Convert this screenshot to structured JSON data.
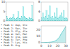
{
  "chart_data": [
    {
      "type": "bar",
      "categories": [
        null,
        null,
        null,
        null,
        null,
        null,
        null,
        null,
        null,
        null,
        null,
        null,
        null,
        null,
        null,
        null,
        null,
        null,
        null,
        null,
        null,
        null,
        null,
        null,
        null,
        null,
        null,
        null
      ],
      "values": [
        2.5,
        1.2,
        1.0,
        1.5,
        1.8,
        1.2,
        2.0,
        3.5,
        1.5,
        1.0,
        1.5,
        2.0,
        5.0,
        1.2,
        1.5,
        2.5,
        1.8,
        7.5,
        2.5,
        2.0,
        1.5,
        1.2,
        1.0,
        2.0,
        1.5,
        1.2,
        8.5,
        1.0
      ],
      "color": "#aaf0f0",
      "ylim": [
        0,
        10
      ],
      "yticks": [
        0,
        5,
        10
      ],
      "tick_labels": "y"
    },
    {
      "type": "bar",
      "categories": [
        null,
        null,
        null,
        null,
        null,
        null,
        null,
        null,
        null,
        null,
        null,
        null,
        null,
        null,
        null,
        null,
        null,
        null,
        null,
        null,
        null,
        null,
        null
      ],
      "values": [
        1.5,
        3.5,
        1.5,
        2.0,
        4.5,
        1.2,
        2.5,
        6.5,
        1.5,
        2.0,
        1.2,
        3.5,
        1.8,
        5.5,
        1.2,
        1.8,
        2.5,
        3.5,
        1.8,
        4.5,
        1.2,
        1.5,
        1.0
      ],
      "color": "#aaf0f0",
      "ylim": [
        0,
        8
      ],
      "yticks": [
        0,
        4,
        8
      ],
      "tick_labels": "y"
    },
    {
      "type": "text",
      "annotations": [
        "• Peak 1: Asp, Glu",
        "• Peak 2: Ser, Thr",
        "• Peak 3: Gly, Ala",
        "• Peak 4: Val, Met",
        "• Peak 5: Ile, Leu",
        "• Peak 6: Tyr, Phe",
        "• Peak 7: Lys, His",
        "• Peak 8: Arg"
      ],
      "color": "#333333"
    },
    {
      "type": "area",
      "x": [
        0,
        1,
        2,
        3,
        4,
        5,
        6,
        7,
        8,
        9,
        10,
        11,
        12,
        13,
        14,
        15,
        16,
        17,
        18,
        19,
        20,
        21,
        22,
        23,
        24,
        25,
        26,
        27,
        28,
        29,
        30
      ],
      "values": [
        0.2,
        0.3,
        0.35,
        0.4,
        0.45,
        0.5,
        0.55,
        0.6,
        0.65,
        0.7,
        0.8,
        0.9,
        1.0,
        1.2,
        1.5,
        1.8,
        2.2,
        2.8,
        3.5,
        4.5,
        5.8,
        7.0,
        8.5,
        10.5,
        13,
        15,
        17,
        19,
        21,
        23,
        25
      ],
      "color": "#50c8c8",
      "xlim": [
        0,
        30
      ],
      "xticks": [
        0,
        10,
        20,
        30
      ],
      "ylim": [
        0,
        26
      ],
      "yticks": [
        0,
        10,
        20
      ]
    }
  ]
}
